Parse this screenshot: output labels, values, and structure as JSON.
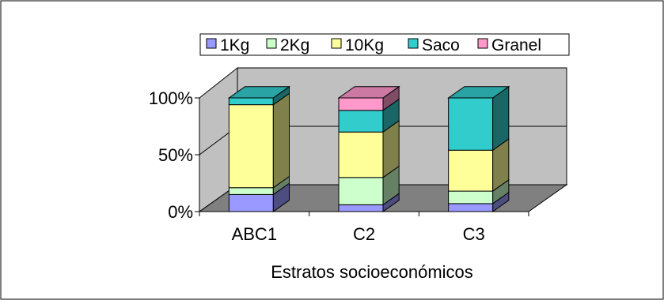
{
  "chart_data": {
    "type": "bar",
    "stacked": true,
    "percent_stacked": true,
    "three_d": true,
    "categories": [
      "ABC1",
      "C2",
      "C3"
    ],
    "series": [
      {
        "name": "1Kg",
        "values": [
          15,
          6,
          7
        ],
        "color": "#9999FF"
      },
      {
        "name": "2Kg",
        "values": [
          6,
          24,
          11
        ],
        "color": "#CCFFCC"
      },
      {
        "name": "10Kg",
        "values": [
          73,
          40,
          36
        ],
        "color": "#FFFF99"
      },
      {
        "name": "Saco",
        "values": [
          6,
          19,
          46
        ],
        "color": "#33CCCC"
      },
      {
        "name": "Granel",
        "values": [
          0,
          11,
          0
        ],
        "color": "#FF99CC"
      }
    ],
    "y_ticks": [
      "0%",
      "50%",
      "100%"
    ],
    "ylim": [
      0,
      100
    ],
    "xlabel": "Estratos socioeconómicos",
    "ylabel": "",
    "title": "",
    "legend_position": "top",
    "grid": true,
    "wall_color": "#C0C0C0",
    "floor_color": "#808080"
  }
}
